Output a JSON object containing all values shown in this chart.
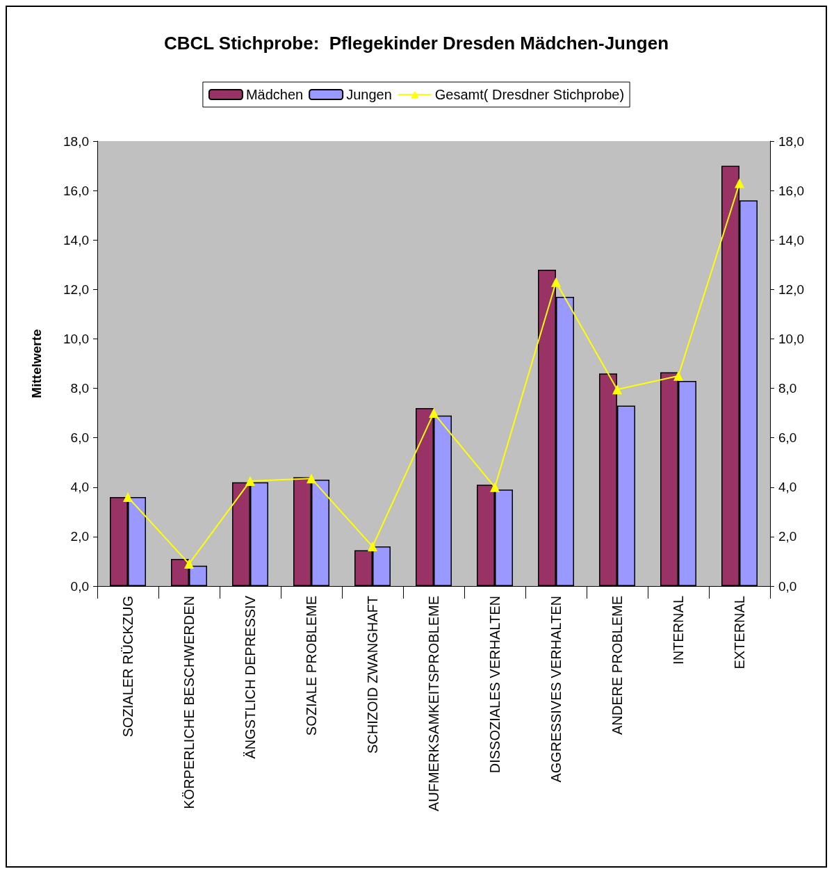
{
  "chart_data": {
    "type": "bar",
    "title": "CBCL Stichprobe:  Pflegekinder Dresden Mädchen-Jungen",
    "ylabel": "Mittelwerte",
    "categories": [
      "SOZIALER RÜCKZUG",
      "KÖRPERLICHE BESCHWERDEN",
      "ÄNGSTLICH DEPRESSIV",
      "SOZIALE PROBLEME",
      "SCHIZOID ZWANGHAFT",
      "AUFMERKSAMKEITSPROBLEME",
      "DISSOZIALES VERHALTEN",
      "AGGRESSIVES VERHALTEN",
      "ANDERE PROBLEME",
      "INTERNAL",
      "EXTERNAL"
    ],
    "series": [
      {
        "name": "Mädchen",
        "color": "#993366",
        "values": [
          3.6,
          1.1,
          4.2,
          4.4,
          1.45,
          7.2,
          4.1,
          12.8,
          8.6,
          8.65,
          17.0
        ]
      },
      {
        "name": "Jungen",
        "color": "#9999ff",
        "values": [
          3.6,
          0.82,
          4.2,
          4.3,
          1.6,
          6.9,
          3.9,
          11.7,
          7.3,
          8.3,
          15.6
        ]
      },
      {
        "name": "Gesamt( Dresdner Stichprobe)",
        "type": "line",
        "color": "#ffff00",
        "marker": "triangle",
        "values": [
          3.6,
          0.9,
          4.25,
          4.35,
          1.6,
          7.0,
          4.0,
          12.3,
          7.95,
          8.5,
          16.3
        ]
      }
    ],
    "ylim": [
      0,
      18
    ],
    "yticks": [
      {
        "value": 0,
        "label": "0,0"
      },
      {
        "value": 2,
        "label": "2,0"
      },
      {
        "value": 4,
        "label": "4,0"
      },
      {
        "value": 6,
        "label": "6,0"
      },
      {
        "value": 8,
        "label": "8,0"
      },
      {
        "value": 10,
        "label": "10,0"
      },
      {
        "value": 12,
        "label": "12,0"
      },
      {
        "value": 14,
        "label": "14,0"
      },
      {
        "value": 16,
        "label": "16,0"
      },
      {
        "value": 18,
        "label": "18,0"
      }
    ],
    "y2lim": [
      0,
      18
    ],
    "y2ticks": [
      {
        "value": 0,
        "label": "0,0"
      },
      {
        "value": 2,
        "label": "2,0"
      },
      {
        "value": 4,
        "label": "4,0"
      },
      {
        "value": 6,
        "label": "6,0"
      },
      {
        "value": 8,
        "label": "8,0"
      },
      {
        "value": 10,
        "label": "10,0"
      },
      {
        "value": 12,
        "label": "12,0"
      },
      {
        "value": 14,
        "label": "14,0"
      },
      {
        "value": 16,
        "label": "16,0"
      },
      {
        "value": 18,
        "label": "18,0"
      }
    ],
    "grid": false,
    "legend": "top"
  }
}
